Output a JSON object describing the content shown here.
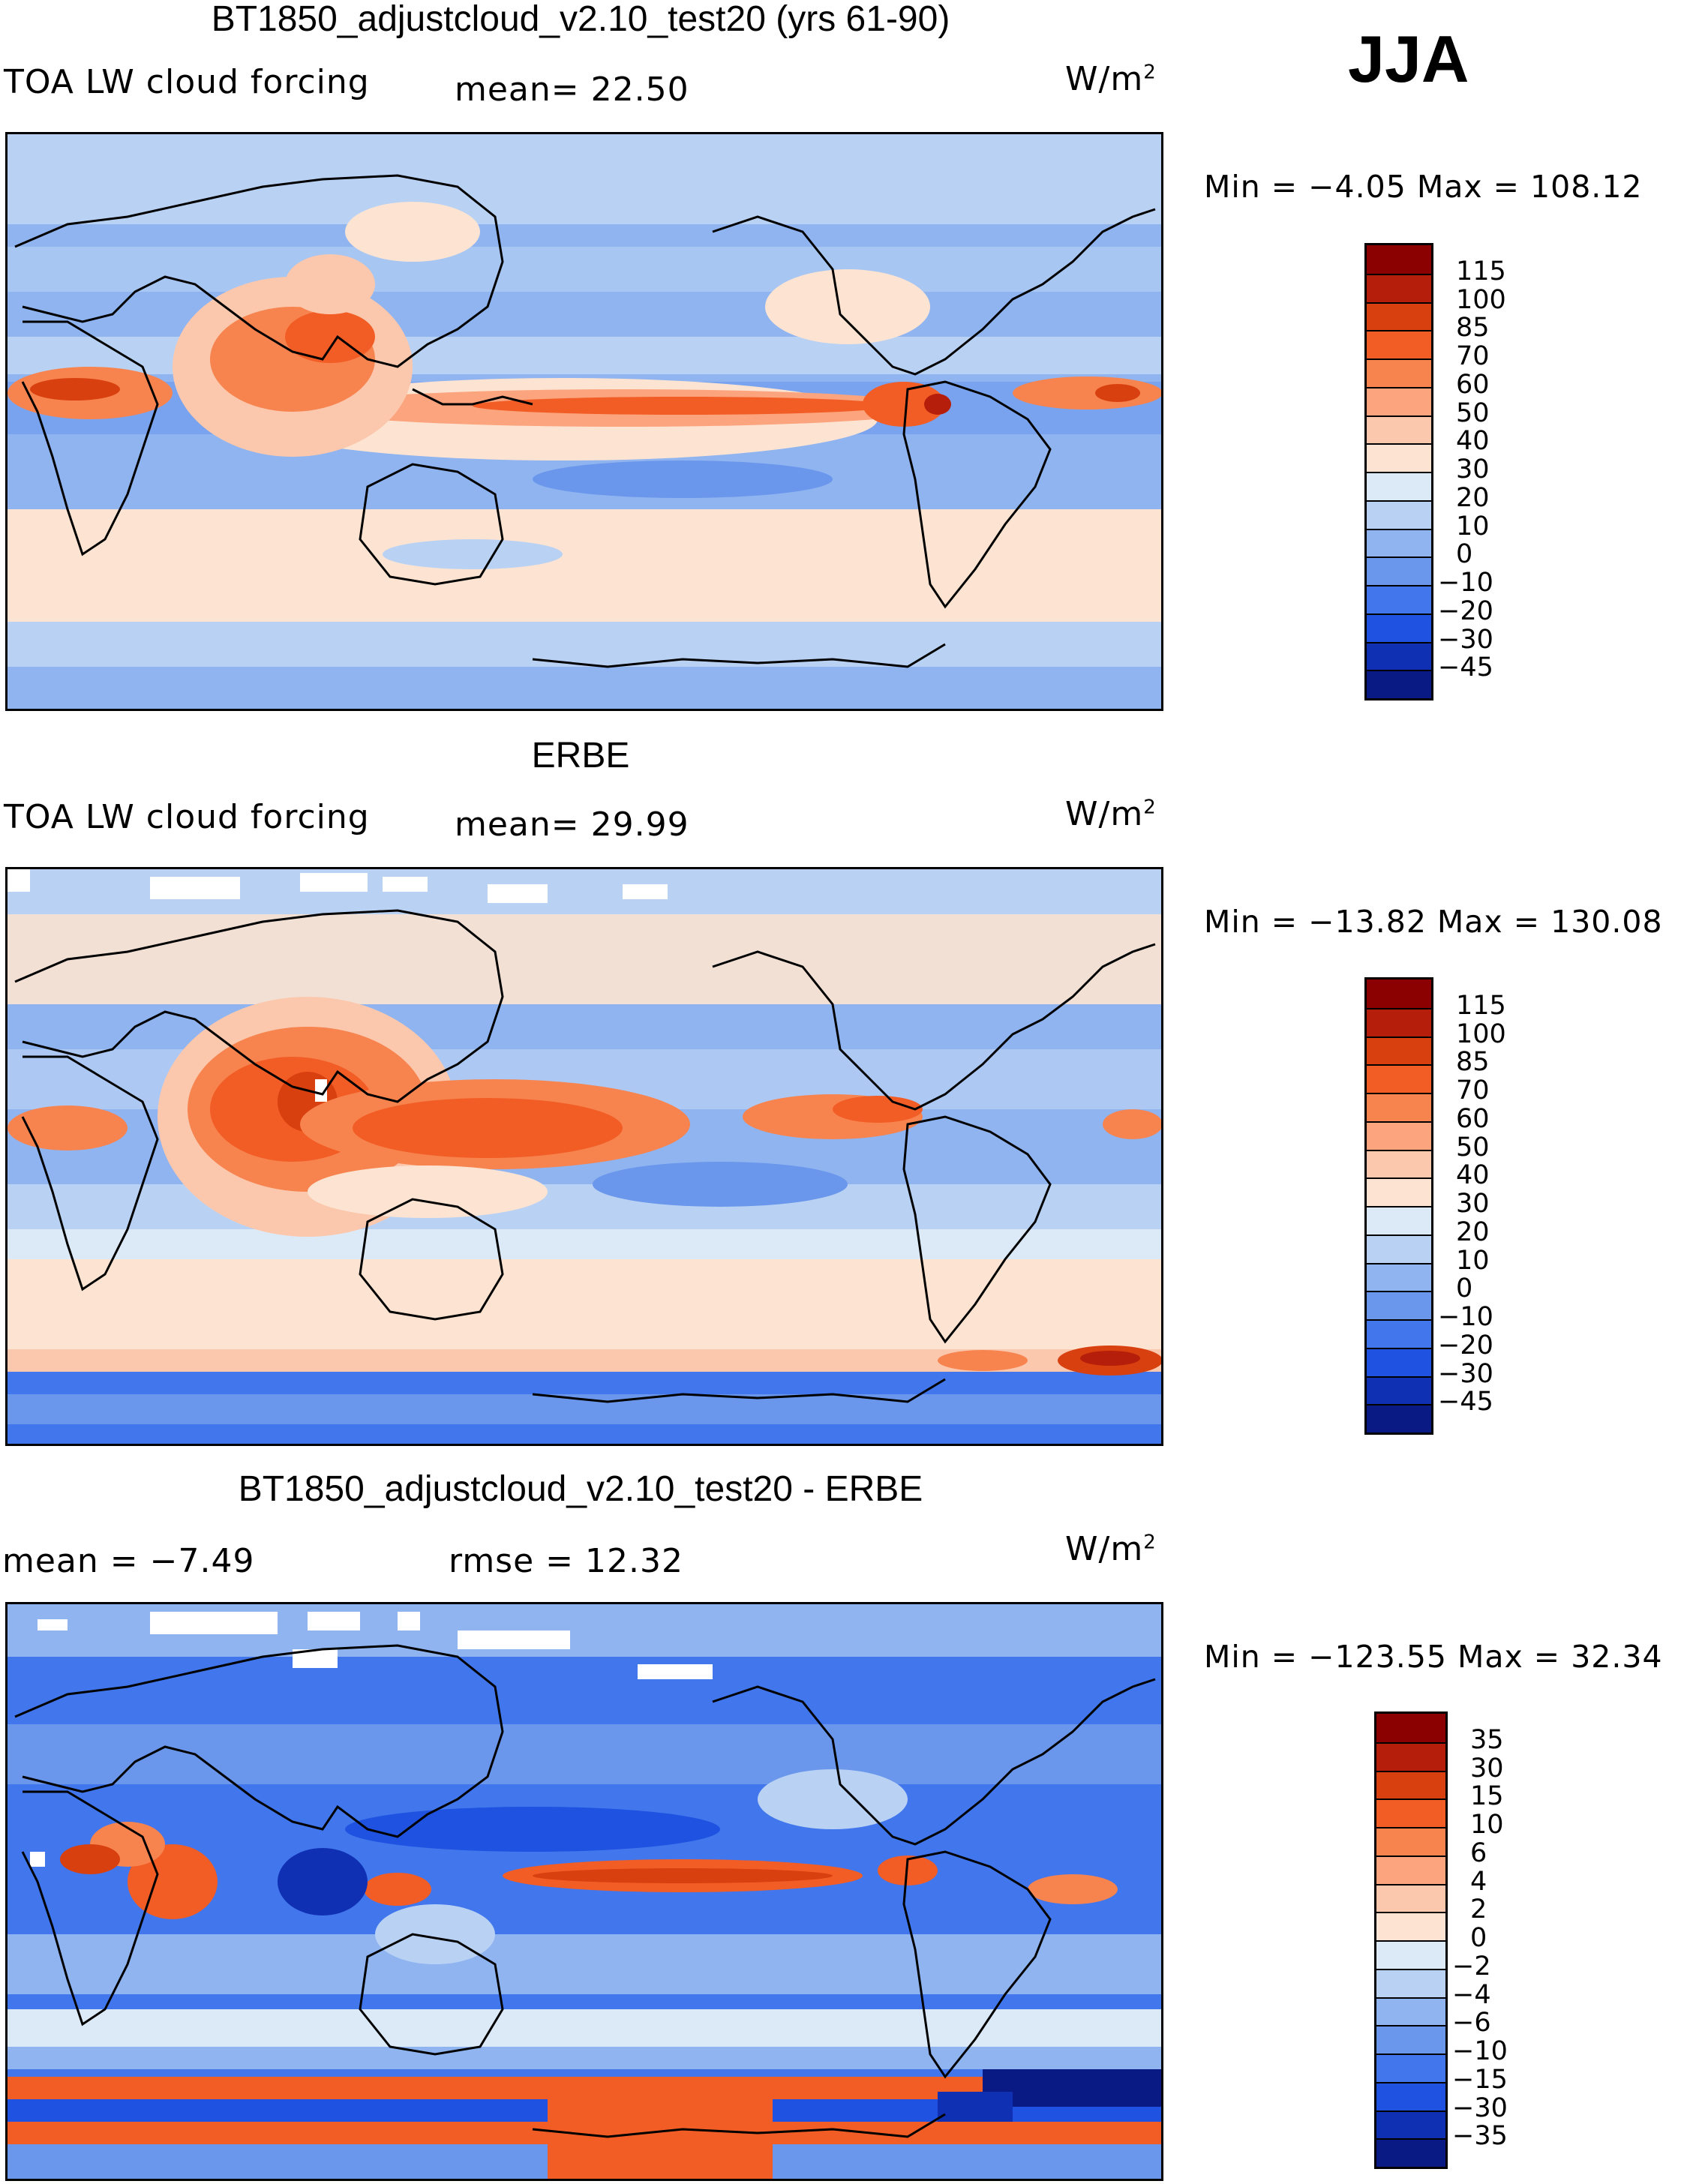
{
  "season": "JJA",
  "units_base": "W/m",
  "units_exp": "2",
  "panels": [
    {
      "title": "BT1850_adjustcloud_v2.10_test20 (yrs 61-90)",
      "field": "TOA LW cloud forcing",
      "stat1": "mean=   22.50",
      "stat2": "",
      "minmax": "Min =   −4.05 Max = 108.12"
    },
    {
      "title": "ERBE",
      "field": "TOA LW cloud forcing",
      "stat1": "mean=   29.99",
      "stat2": "",
      "minmax": "Min = −13.82 Max = 130.08"
    },
    {
      "title": "BT1850_adjustcloud_v2.10_test20 - ERBE",
      "field": "",
      "stat1": "mean =   −7.49",
      "stat2": "rmse =   12.32",
      "minmax": "Min = −123.55 Max =  32.34"
    }
  ],
  "colorbar_abs": {
    "labels": [
      "115",
      "100",
      "85",
      "70",
      "60",
      "50",
      "40",
      "30",
      "20",
      "10",
      "0",
      "−10",
      "−20",
      "−30",
      "−45"
    ],
    "colors": [
      "#8b0000",
      "#b51e0a",
      "#d9400f",
      "#f25d25",
      "#f7844f",
      "#fba47e",
      "#fcc8ad",
      "#fde4d2",
      "#dceaf8",
      "#b9d2f4",
      "#8fb4f0",
      "#6a97ec",
      "#4176ec",
      "#1f52e0",
      "#1030b4",
      "#0a1a85"
    ]
  },
  "colorbar_diff": {
    "labels": [
      "35",
      "30",
      "15",
      "10",
      "6",
      "4",
      "2",
      "0",
      "−2",
      "−4",
      "−6",
      "−10",
      "−15",
      "−30",
      "−35"
    ],
    "colors": [
      "#8b0000",
      "#b51e0a",
      "#d9400f",
      "#f25d25",
      "#f7844f",
      "#fba47e",
      "#fcc8ad",
      "#fde4d2",
      "#dceaf8",
      "#b9d2f4",
      "#8fb4f0",
      "#6a97ec",
      "#4176ec",
      "#1f52e0",
      "#1030b4",
      "#0a1a85"
    ]
  }
}
